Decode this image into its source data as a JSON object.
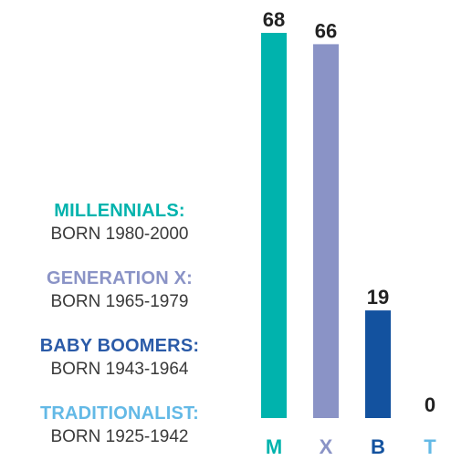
{
  "legend": [
    {
      "name": "MILLENNIALS:",
      "years": "BORN 1980-2000",
      "color": "#00b3ad"
    },
    {
      "name": "GENERATION X:",
      "years": "BORN 1965-1979",
      "color": "#8a93c6"
    },
    {
      "name": "BABY BOOMERS:",
      "years": "BORN 1943-1964",
      "color": "#2b5ba8"
    },
    {
      "name": "TRADITIONALIST:",
      "years": "BORN 1925-1942",
      "color": "#63b9e6"
    }
  ],
  "chart_data": {
    "type": "bar",
    "categories": [
      "M",
      "X",
      "B",
      "T"
    ],
    "values": [
      68,
      66,
      19,
      0
    ],
    "bar_colors": [
      "#00b3ad",
      "#8a93c6",
      "#13529f",
      "#63b9e6"
    ],
    "label_colors": [
      "#00b3ad",
      "#8a93c6",
      "#13529f",
      "#63b9e6"
    ],
    "ylim": [
      0,
      68
    ],
    "grid": false,
    "legend_position": "left"
  }
}
